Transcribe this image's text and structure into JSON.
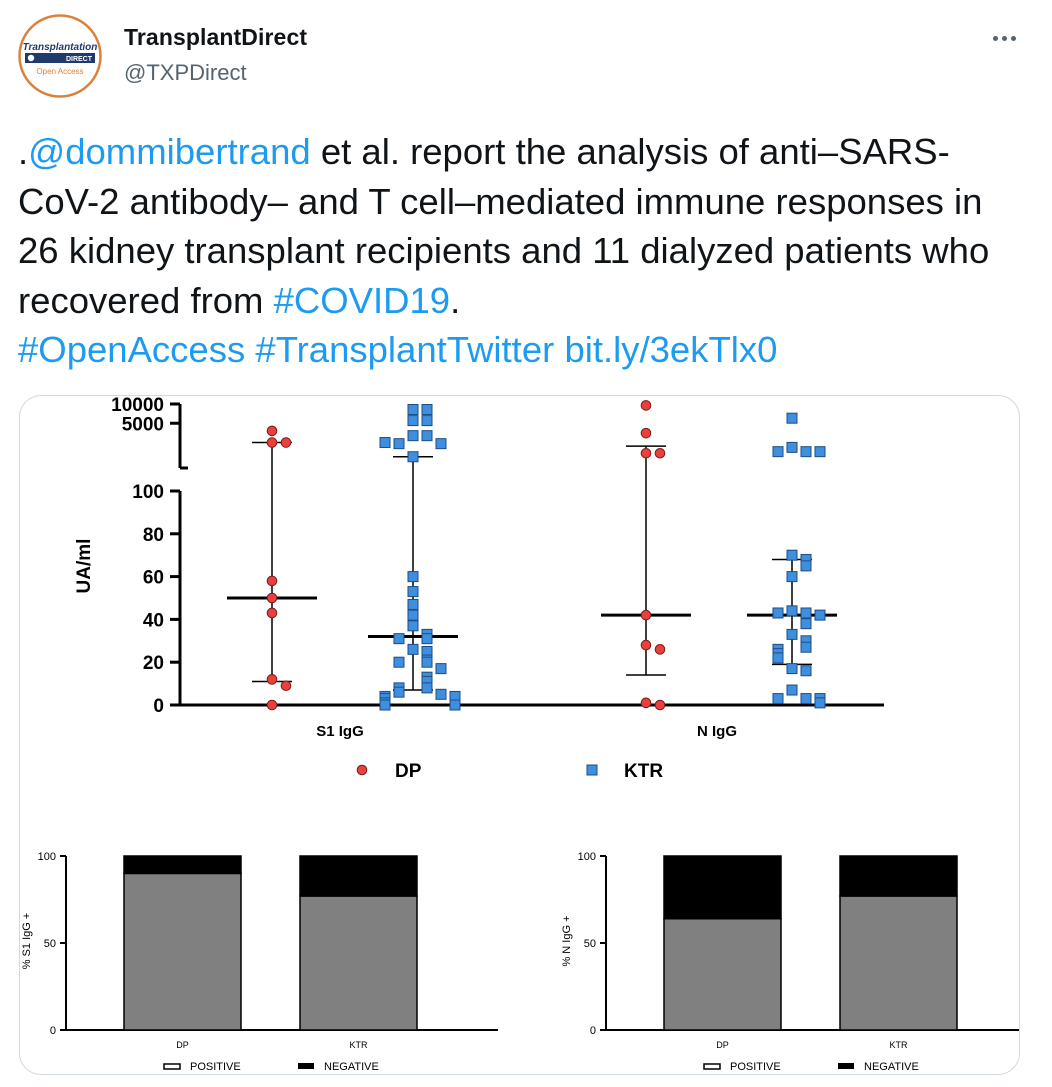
{
  "account": {
    "display_name": "TransplantDirect",
    "handle": "@TXPDirect",
    "avatar": {
      "logo_top": "Transplantation",
      "logo_band": "DIRECT",
      "logo_bottom": "Open Access",
      "colors": {
        "ring": "#d9823b",
        "band": "#1f3b6e",
        "text": "#1f3b6e"
      }
    }
  },
  "more_icon": "more-horizontal-icon",
  "tweet": {
    "prefix": ".",
    "mention": "@dommibertrand",
    "text_1": " et al. report the analysis of anti–SARS-CoV-2 antibody– and T cell–mediated immune responses in 26 kidney transplant recipients and 11 dialyzed patients who recovered from ",
    "hashtag_1": "#COVID19",
    "text_2": ". ",
    "hashtag_2": "#OpenAccess",
    "hashtag_3": "#TransplantTwitter",
    "link": "bit.ly/3ekTlx0",
    "colors": {
      "text": "#0f1419",
      "link": "#1d9bf0"
    }
  },
  "chart_data": [
    {
      "type": "scatter",
      "ylabel": "UA/ml",
      "y_ticks_lower": [
        0,
        20,
        40,
        60,
        80,
        100
      ],
      "y_ticks_upper": [
        5000,
        10000
      ],
      "y_axis_break": [
        100,
        1000
      ],
      "categories": [
        "S1 IgG",
        "N IgG"
      ],
      "legend": [
        {
          "name": "DP",
          "marker": "circle",
          "color": "#e8413c"
        },
        {
          "name": "KTR",
          "marker": "square",
          "color": "#3f8fe0"
        }
      ],
      "series": [
        {
          "name": "DP",
          "category": "S1 IgG",
          "values": [
            3800,
            2500,
            2500,
            58,
            50,
            43,
            12,
            9,
            0
          ],
          "median": 50,
          "whisker_low": 11,
          "whisker_high": 2500
        },
        {
          "name": "KTR",
          "category": "S1 IgG",
          "values": [
            8200,
            8200,
            5500,
            5500,
            3200,
            3200,
            2400,
            2400,
            1500,
            2500,
            60,
            53,
            47,
            42,
            37,
            33,
            31,
            31,
            26,
            25,
            21,
            20,
            20,
            17,
            13,
            11,
            8,
            8,
            6,
            5,
            4,
            4,
            3,
            1,
            0,
            0
          ],
          "median": 32,
          "whisker_low": 7,
          "whisker_high": 1500
        },
        {
          "name": "DP",
          "category": "N IgG",
          "values": [
            9500,
            3500,
            1700,
            1700,
            42,
            28,
            26,
            1,
            0
          ],
          "median": 42,
          "whisker_low": 14,
          "whisker_high": 2200
        },
        {
          "name": "KTR",
          "category": "N IgG",
          "values": [
            6000,
            2100,
            1800,
            1800,
            1800,
            70,
            68,
            65,
            60,
            44,
            43,
            43,
            42,
            38,
            33,
            30,
            27,
            26,
            24,
            22,
            17,
            16,
            7,
            3,
            3,
            3,
            1
          ],
          "median": 42,
          "whisker_low": 19,
          "whisker_high": 68
        }
      ]
    },
    {
      "type": "bar",
      "stacked": true,
      "ylabel": "% S1 IgG +",
      "categories": [
        "DP",
        "KTR"
      ],
      "ylim": [
        0,
        100
      ],
      "y_ticks": [
        0,
        50,
        100
      ],
      "series": [
        {
          "name": "POSITIVE",
          "values": [
            90,
            77
          ],
          "color": "#808080"
        },
        {
          "name": "NEGATIVE",
          "values": [
            10,
            23
          ],
          "color": "#000000"
        }
      ]
    },
    {
      "type": "bar",
      "stacked": true,
      "ylabel": "% N IgG +",
      "categories": [
        "DP",
        "KTR"
      ],
      "ylim": [
        0,
        100
      ],
      "y_ticks": [
        0,
        50,
        100
      ],
      "series": [
        {
          "name": "POSITIVE",
          "values": [
            64,
            77
          ],
          "color": "#808080"
        },
        {
          "name": "NEGATIVE",
          "values": [
            36,
            23
          ],
          "color": "#000000"
        }
      ]
    }
  ]
}
